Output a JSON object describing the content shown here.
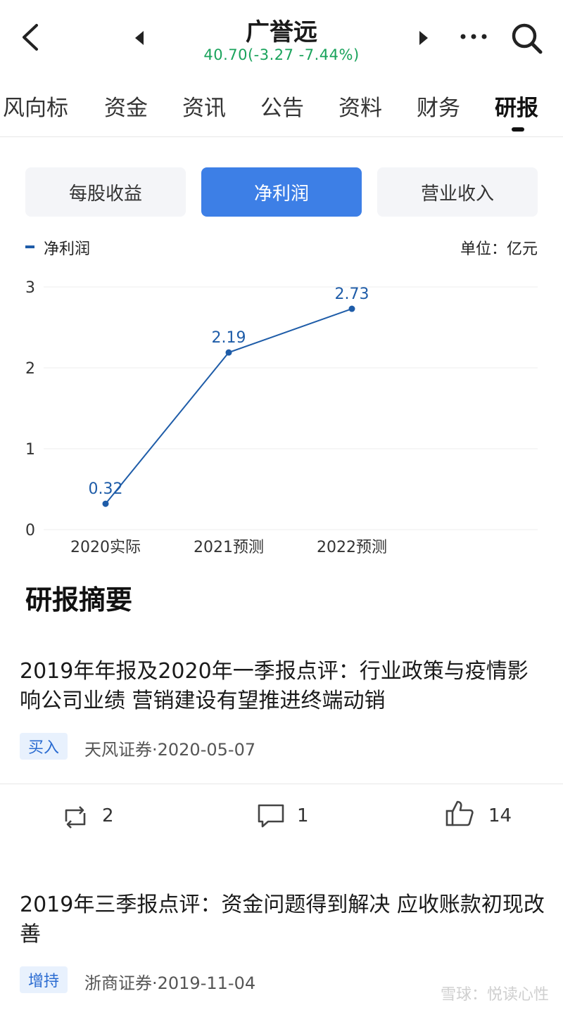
{
  "header": {
    "stock_name": "广誉远",
    "quote": "40.70(-3.27 -7.44%)",
    "quote_color": "#1aa35c"
  },
  "tabs": [
    "风向标",
    "资金",
    "资讯",
    "公告",
    "资料",
    "财务",
    "研报"
  ],
  "active_tab": "研报",
  "segments": {
    "items": [
      "每股收益",
      "净利润",
      "营业收入"
    ],
    "active": "净利润",
    "active_color": "#3d7fe6"
  },
  "chart_data": {
    "type": "line",
    "categories": [
      "2020实际",
      "2021预测",
      "2022预测"
    ],
    "series": [
      {
        "name": "净利润",
        "values": [
          0.32,
          2.19,
          2.73
        ],
        "labels": [
          "0.32",
          "2.19",
          "2.73"
        ],
        "color": "#1e5ca8"
      }
    ],
    "unit_label": "单位：亿元",
    "y_ticks": [
      "0",
      "1",
      "2",
      "3"
    ],
    "ylim": [
      0,
      3
    ],
    "grid": true,
    "legend": "top-left"
  },
  "section_title": "研报摘要",
  "reports": [
    {
      "title": "2019年年报及2020年一季报点评：行业政策与疫情影响公司业绩 营销建设有望推进终端动销",
      "rating": "买入",
      "meta": "天风证券·2020-05-07",
      "actions": {
        "repost": "2",
        "comment": "1",
        "like": "14"
      }
    },
    {
      "title": "2019年三季报点评：资金问题得到解决 应收账款初现改善",
      "rating": "增持",
      "meta": "浙商证券·2019-11-04"
    }
  ],
  "watermark": "雪球：悦读心性"
}
